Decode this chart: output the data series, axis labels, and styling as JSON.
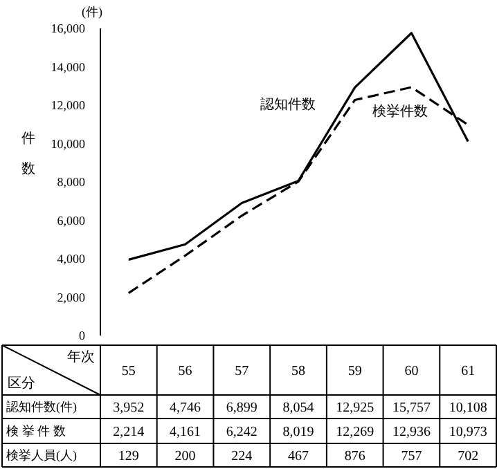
{
  "chart_data": {
    "type": "line",
    "xlabel": "年次",
    "ylabel": "件数",
    "categories": [
      "55",
      "56",
      "57",
      "58",
      "59",
      "60",
      "61"
    ],
    "series": [
      {
        "name": "認知件数",
        "color": "#000000",
        "line_style": "solid",
        "values": [
          3952,
          4746,
          6899,
          8054,
          12925,
          15757,
          10108
        ],
        "value_labels": [
          "3,952",
          "4,746",
          "6,899",
          "8,054",
          "12,925",
          "15,757",
          "10,108"
        ]
      },
      {
        "name": "検挙件数",
        "color": "#000000",
        "line_style": "dashed",
        "values": [
          2214,
          4161,
          6242,
          8019,
          12269,
          12936,
          10973
        ],
        "value_labels": [
          "2,214",
          "4,161",
          "6,242",
          "8,019",
          "12,269",
          "12,936",
          "10,973"
        ]
      }
    ],
    "ylim": [
      0,
      16000
    ],
    "yticks": [
      0,
      {
        "value": 2000,
        "label": "2,000"
      },
      {
        "value": 4000,
        "label": "4,000"
      },
      {
        "value": 6000,
        "label": "6,000"
      },
      {
        "value": 8000,
        "label": "8,000"
      },
      {
        "value": 10000,
        "label": "10,000"
      },
      {
        "value": 12000,
        "label": "12,000"
      },
      {
        "value": 14000,
        "label": "14,000"
      },
      {
        "value": 16000,
        "label": "16,000"
      }
    ],
    "annotations": [
      "(件)",
      "区分",
      "認知件数(件)",
      "検 挙 件 数",
      "検挙人員(人)",
      "129",
      "200",
      "224",
      "467",
      "876",
      "757",
      "702"
    ],
    "tick_labels": "y"
  }
}
